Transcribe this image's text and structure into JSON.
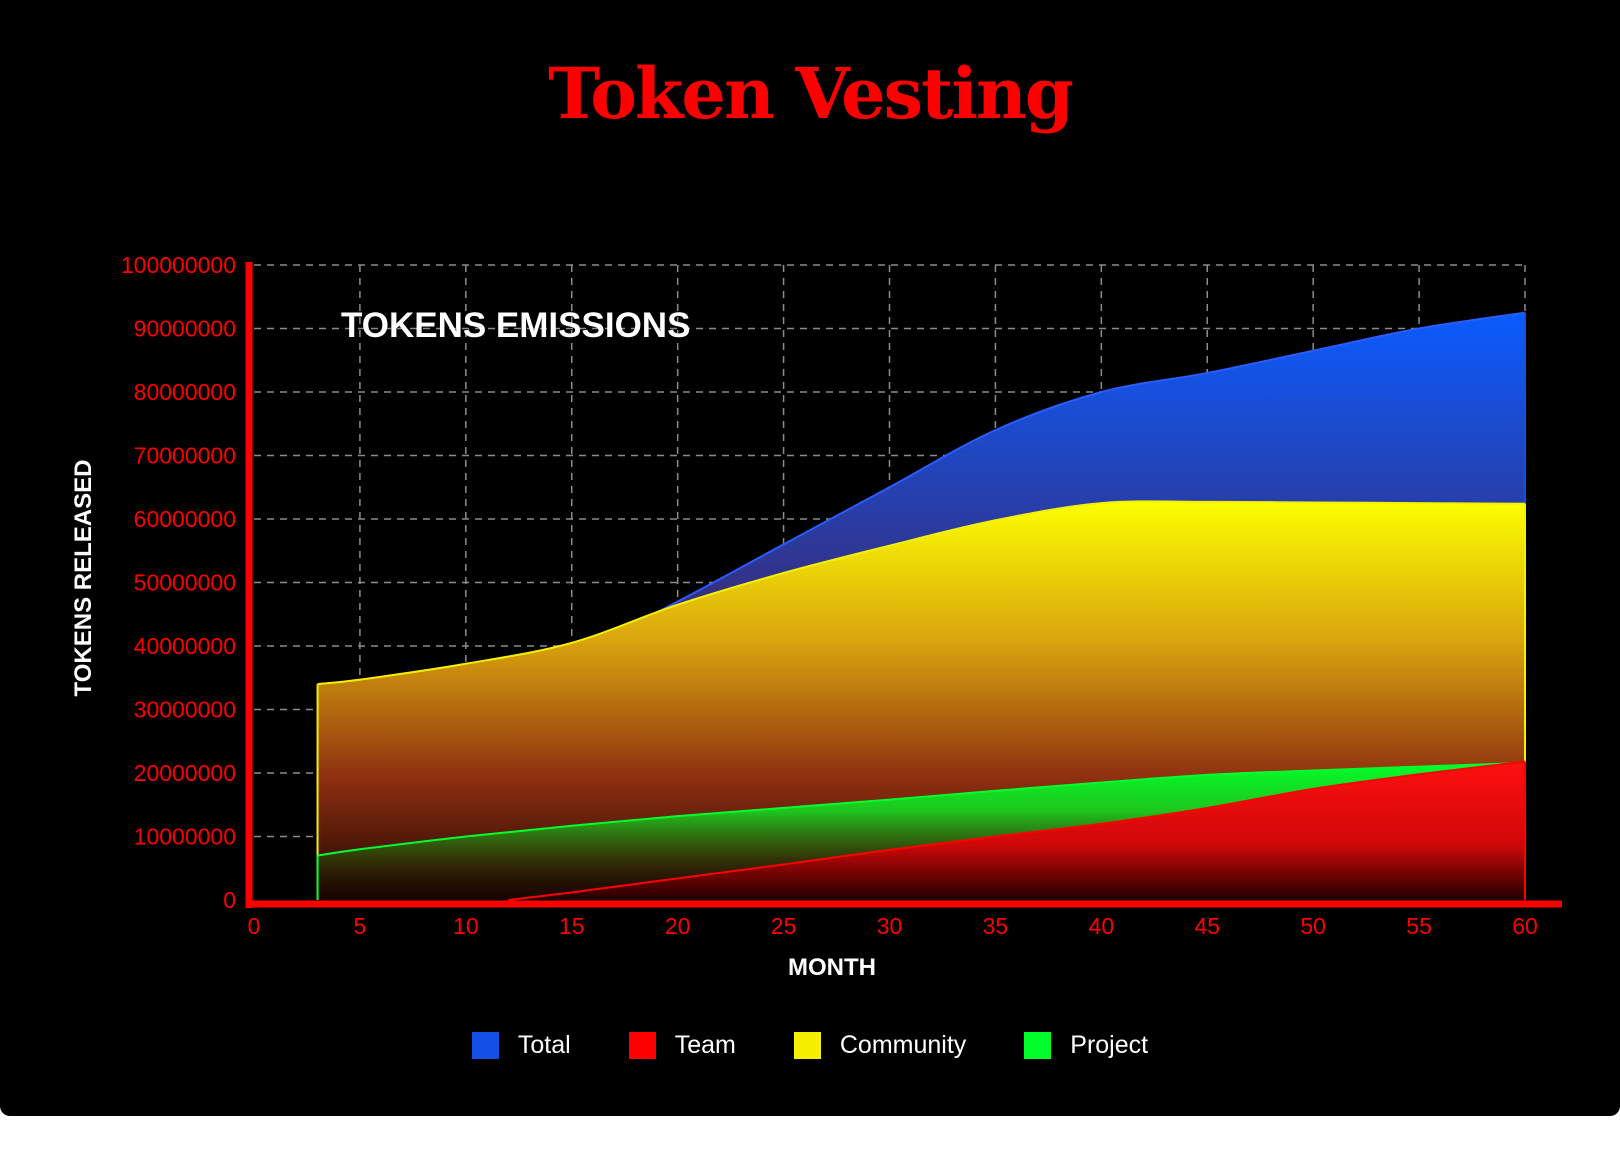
{
  "chart_data": {
    "type": "area",
    "title": "Token Vesting",
    "subtitle": "TOKENS EMISSIONS",
    "xlabel": "MONTH",
    "ylabel": "TOKENS RELEASED",
    "xlim": [
      0,
      60
    ],
    "ylim": [
      0,
      100000000
    ],
    "x_ticks": [
      0,
      5,
      10,
      15,
      20,
      25,
      30,
      35,
      40,
      45,
      50,
      55,
      60
    ],
    "y_ticks": [
      0,
      10000000,
      20000000,
      30000000,
      40000000,
      50000000,
      60000000,
      70000000,
      80000000,
      90000000,
      100000000
    ],
    "grid": true,
    "legend_position": "bottom-center",
    "series": [
      {
        "name": "Total",
        "color": "#1450e6",
        "x": [
          3,
          5,
          10,
          15,
          20,
          25,
          30,
          35,
          40,
          45,
          50,
          55,
          60
        ],
        "y": [
          24500000,
          27000000,
          32500000,
          38500000,
          47000000,
          56000000,
          65000000,
          74000000,
          80000000,
          83000000,
          86500000,
          90000000,
          92500000
        ]
      },
      {
        "name": "Community",
        "color": "#f5f000",
        "x": [
          3,
          5,
          10,
          15,
          20,
          25,
          30,
          35,
          40,
          45,
          50,
          55,
          60
        ],
        "y": [
          34000000,
          34700000,
          37200000,
          40500000,
          46500000,
          51500000,
          55800000,
          59800000,
          62500000,
          62700000,
          62600000,
          62500000,
          62400000
        ]
      },
      {
        "name": "Project",
        "color": "#00ff2a",
        "x": [
          3,
          5,
          10,
          15,
          20,
          25,
          30,
          35,
          40,
          45,
          50,
          55,
          60
        ],
        "y": [
          7000000,
          8000000,
          10000000,
          11700000,
          13200000,
          14500000,
          15800000,
          17200000,
          18500000,
          19700000,
          20400000,
          21000000,
          21600000
        ]
      },
      {
        "name": "Team",
        "color": "#ff0000",
        "x": [
          12,
          15,
          20,
          25,
          30,
          35,
          40,
          45,
          50,
          55,
          60
        ],
        "y": [
          0,
          1200000,
          3400000,
          5600000,
          7900000,
          10000000,
          12000000,
          14500000,
          17500000,
          19800000,
          21800000
        ]
      }
    ]
  },
  "legend": [
    {
      "label": "Total",
      "color": "#1450e6"
    },
    {
      "label": "Team",
      "color": "#ff0000"
    },
    {
      "label": "Community",
      "color": "#f5f000"
    },
    {
      "label": "Project",
      "color": "#00ff2a"
    }
  ],
  "colors": {
    "accent": "#ff0000",
    "grid": "#8c8c8c",
    "background": "#000000"
  }
}
